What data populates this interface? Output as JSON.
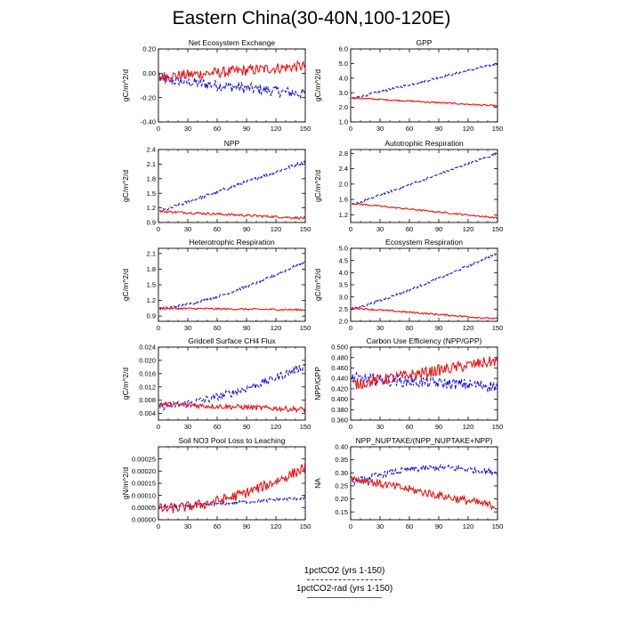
{
  "title": "Eastern China(30-40N,100-120E)",
  "colors": {
    "blue": "#1111ee",
    "red": "#ee1111"
  },
  "legend": [
    {
      "label": "1pctCO2 (yrs 1-150)",
      "color": "#2222ee",
      "style": "dashed"
    },
    {
      "label": "1pctCO2-rad (yrs 1-150)",
      "color": "#ee2222",
      "style": "solid"
    }
  ],
  "chart_data": [
    {
      "type": "line",
      "title": "Net Ecosystem Exchange",
      "ylabel": "gC/m^2/d",
      "xlim": [
        0,
        150
      ],
      "ylim": [
        -0.4,
        0.2
      ],
      "xticks": [
        0,
        30,
        60,
        90,
        120,
        150
      ],
      "yticks": [
        -0.4,
        -0.2,
        0.0,
        0.2
      ],
      "ytick_labels": [
        "-0.40",
        "-0.20",
        "0.00",
        "0.20"
      ],
      "series": [
        {
          "color": "#1111ee",
          "dashed": true,
          "start": -0.05,
          "end": -0.17,
          "noise": 0.045
        },
        {
          "color": "#ee1111",
          "dashed": false,
          "start": -0.03,
          "end": 0.06,
          "noise": 0.045
        }
      ]
    },
    {
      "type": "line",
      "title": "GPP",
      "ylabel": "gC/m^2/d",
      "xlim": [
        0,
        150
      ],
      "ylim": [
        1.0,
        6.0
      ],
      "xticks": [
        0,
        30,
        60,
        90,
        120,
        150
      ],
      "yticks": [
        1.0,
        2.0,
        3.0,
        4.0,
        5.0,
        6.0
      ],
      "ytick_labels": [
        "1.0",
        "2.0",
        "3.0",
        "4.0",
        "5.0",
        "6.0"
      ],
      "series": [
        {
          "color": "#1111ee",
          "dashed": true,
          "start": 2.6,
          "end": 5.0,
          "noise": 0.08
        },
        {
          "color": "#ee1111",
          "dashed": false,
          "start": 2.65,
          "end": 2.1,
          "noise": 0.05
        }
      ]
    },
    {
      "type": "line",
      "title": "NPP",
      "ylabel": "gC/m^2/d",
      "xlim": [
        0,
        150
      ],
      "ylim": [
        0.9,
        2.4
      ],
      "xticks": [
        0,
        30,
        60,
        90,
        120,
        150
      ],
      "yticks": [
        0.9,
        1.2,
        1.5,
        1.8,
        2.1,
        2.4
      ],
      "ytick_labels": [
        "0.9",
        "1.2",
        "1.5",
        "1.8",
        "2.1",
        "2.4"
      ],
      "series": [
        {
          "color": "#1111ee",
          "dashed": true,
          "start": 1.12,
          "end": 2.15,
          "noise": 0.035
        },
        {
          "color": "#ee1111",
          "dashed": false,
          "start": 1.13,
          "end": 0.99,
          "noise": 0.025
        }
      ]
    },
    {
      "type": "line",
      "title": "Autotrophic Respiration",
      "ylabel": "gC/m^2/d",
      "xlim": [
        0,
        150
      ],
      "ylim": [
        1.0,
        2.9
      ],
      "xticks": [
        0,
        30,
        60,
        90,
        120,
        150
      ],
      "yticks": [
        1.2,
        1.6,
        2.0,
        2.4,
        2.8
      ],
      "ytick_labels": [
        "1.2",
        "1.6",
        "2.0",
        "2.4",
        "2.8"
      ],
      "series": [
        {
          "color": "#1111ee",
          "dashed": true,
          "start": 1.45,
          "end": 2.8,
          "noise": 0.03
        },
        {
          "color": "#ee1111",
          "dashed": false,
          "start": 1.5,
          "end": 1.12,
          "noise": 0.02
        }
      ]
    },
    {
      "type": "line",
      "title": "Heterotrophic Respiration",
      "ylabel": "gC/m^2/d",
      "xlim": [
        0,
        150
      ],
      "ylim": [
        0.8,
        2.2
      ],
      "xticks": [
        0,
        30,
        60,
        90,
        120,
        150
      ],
      "yticks": [
        0.9,
        1.2,
        1.5,
        1.8,
        2.1
      ],
      "ytick_labels": [
        "0.9",
        "1.2",
        "1.5",
        "1.8",
        "2.1"
      ],
      "series": [
        {
          "color": "#1111ee",
          "dashed": true,
          "start": 1.05,
          "end": 1.95,
          "noise": 0.025,
          "power": 1.5
        },
        {
          "color": "#ee1111",
          "dashed": false,
          "start": 1.05,
          "end": 1.02,
          "noise": 0.018
        }
      ]
    },
    {
      "type": "line",
      "title": "Ecosystem Respiration",
      "ylabel": "gC/m^2/d",
      "xlim": [
        0,
        150
      ],
      "ylim": [
        2.0,
        5.0
      ],
      "xticks": [
        0,
        30,
        60,
        90,
        120,
        150
      ],
      "yticks": [
        2.0,
        2.5,
        3.0,
        3.5,
        4.0,
        4.5,
        5.0
      ],
      "ytick_labels": [
        "2.0",
        "2.5",
        "3.0",
        "3.5",
        "4.0",
        "4.5",
        "5.0"
      ],
      "series": [
        {
          "color": "#1111ee",
          "dashed": true,
          "start": 2.5,
          "end": 4.8,
          "noise": 0.05,
          "power": 1.15
        },
        {
          "color": "#ee1111",
          "dashed": false,
          "start": 2.55,
          "end": 2.1,
          "noise": 0.035
        }
      ]
    },
    {
      "type": "line",
      "title": "Gridcell Surface CH4 Flux",
      "ylabel": "gC/m^2/d",
      "xlim": [
        0,
        150
      ],
      "ylim": [
        0.002,
        0.024
      ],
      "xticks": [
        0,
        30,
        60,
        90,
        120,
        150
      ],
      "yticks": [
        0.004,
        0.008,
        0.012,
        0.016,
        0.02,
        0.024
      ],
      "ytick_labels": [
        "0.004",
        "0.008",
        "0.012",
        "0.016",
        "0.020",
        "0.024"
      ],
      "series": [
        {
          "color": "#1111ee",
          "dashed": true,
          "start": 0.0062,
          "end": 0.0185,
          "noise": 0.0012,
          "power": 1.6
        },
        {
          "color": "#ee1111",
          "dashed": false,
          "start": 0.0068,
          "end": 0.0052,
          "noise": 0.0008
        }
      ]
    },
    {
      "type": "line",
      "title": "Carbon Use Efficiency (NPP/GPP)",
      "ylabel": "NPP/GPP",
      "xlim": [
        0,
        150
      ],
      "ylim": [
        0.36,
        0.5
      ],
      "xticks": [
        0,
        30,
        60,
        90,
        120,
        150
      ],
      "yticks": [
        0.36,
        0.38,
        0.4,
        0.42,
        0.44,
        0.46,
        0.48,
        0.5
      ],
      "ytick_labels": [
        "0.360",
        "0.380",
        "0.400",
        "0.420",
        "0.440",
        "0.460",
        "0.480",
        "0.500"
      ],
      "series": [
        {
          "color": "#1111ee",
          "dashed": true,
          "start": 0.44,
          "end": 0.425,
          "noise": 0.011
        },
        {
          "color": "#ee1111",
          "dashed": false,
          "start": 0.428,
          "end": 0.474,
          "noise": 0.011
        }
      ]
    },
    {
      "type": "line",
      "title": "Soil NO3 Pool Loss to Leaching",
      "ylabel": "gN/m^2/d",
      "xlim": [
        0,
        150
      ],
      "ylim": [
        0.0,
        0.0003
      ],
      "xticks": [
        0,
        30,
        60,
        90,
        120,
        150
      ],
      "yticks": [
        0.0,
        5e-05,
        0.0001,
        0.00015,
        0.0002,
        0.00025
      ],
      "ytick_labels": [
        "0.00000",
        "0.00005",
        "0.00010",
        "0.00015",
        "0.00020",
        "0.00025"
      ],
      "series": [
        {
          "color": "#1111ee",
          "dashed": true,
          "start": 5e-05,
          "end": 9e-05,
          "noise": 7e-06
        },
        {
          "color": "#ee1111",
          "dashed": false,
          "start": 4.5e-05,
          "end": 0.000215,
          "noise": 2.2e-05,
          "power": 1.8
        }
      ]
    },
    {
      "type": "line",
      "title": "NPP_NUPTAKE/(NPP_NUPTAKE+NPP)",
      "ylabel": "NA",
      "xlim": [
        0,
        150
      ],
      "ylim": [
        0.12,
        0.4
      ],
      "xticks": [
        0,
        30,
        60,
        90,
        120,
        150
      ],
      "yticks": [
        0.15,
        0.2,
        0.25,
        0.3,
        0.35,
        0.4
      ],
      "ytick_labels": [
        "0.15",
        "0.20",
        "0.25",
        "0.30",
        "0.35",
        "0.40"
      ],
      "series": [
        {
          "color": "#1111ee",
          "dashed": true,
          "start": 0.265,
          "end": 0.3,
          "noise": 0.012,
          "bump": 0.035
        },
        {
          "color": "#ee1111",
          "dashed": false,
          "start": 0.28,
          "end": 0.17,
          "noise": 0.016
        }
      ]
    }
  ]
}
